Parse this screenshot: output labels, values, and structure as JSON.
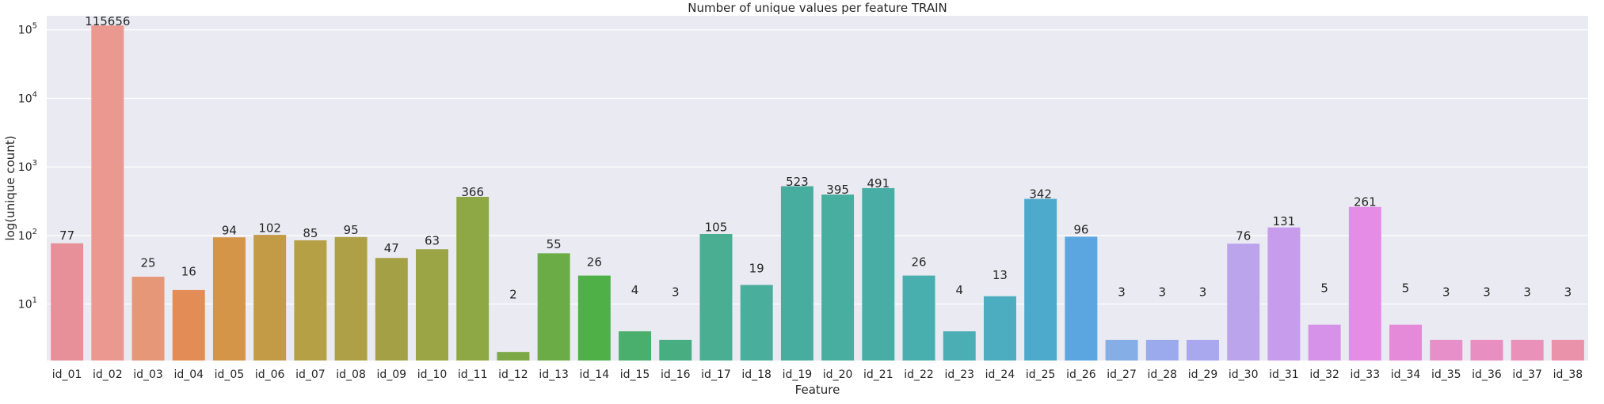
{
  "chart_data": {
    "type": "bar",
    "title": "Number of unique values per feature TRAIN",
    "xlabel": "Feature",
    "ylabel": "log(unique count)",
    "yscale": "log",
    "ylim": [
      1.5,
      160000
    ],
    "y_ticks": [
      {
        "base": "10",
        "exp": "1",
        "value": 10
      },
      {
        "base": "10",
        "exp": "2",
        "value": 100
      },
      {
        "base": "10",
        "exp": "3",
        "value": 1000
      },
      {
        "base": "10",
        "exp": "4",
        "value": 10000
      },
      {
        "base": "10",
        "exp": "5",
        "value": 100000
      }
    ],
    "grid": true,
    "background": "#eaeaf2",
    "categories": [
      "id_01",
      "id_02",
      "id_03",
      "id_04",
      "id_05",
      "id_06",
      "id_07",
      "id_08",
      "id_09",
      "id_10",
      "id_11",
      "id_12",
      "id_13",
      "id_14",
      "id_15",
      "id_16",
      "id_17",
      "id_18",
      "id_19",
      "id_20",
      "id_21",
      "id_22",
      "id_23",
      "id_24",
      "id_25",
      "id_26",
      "id_27",
      "id_28",
      "id_29",
      "id_30",
      "id_31",
      "id_32",
      "id_33",
      "id_34",
      "id_35",
      "id_36",
      "id_37",
      "id_38"
    ],
    "values": [
      77,
      115656,
      25,
      16,
      94,
      102,
      85,
      95,
      47,
      63,
      366,
      2,
      55,
      26,
      4,
      3,
      105,
      19,
      523,
      395,
      491,
      26,
      4,
      13,
      342,
      96,
      3,
      3,
      3,
      76,
      131,
      5,
      261,
      5,
      3,
      3,
      3,
      3
    ],
    "colors": [
      "#e8909a",
      "#eb9890",
      "#e59777",
      "#e38c55",
      "#d49548",
      "#c39b46",
      "#b5a046",
      "#aea046",
      "#a4a046",
      "#9ba546",
      "#8fa846",
      "#7ca946",
      "#6cac47",
      "#4fb047",
      "#4aae6c",
      "#49ad82",
      "#4aae93",
      "#4aae9d",
      "#47ad9e",
      "#48ae9f",
      "#48aea5",
      "#49aeae",
      "#4aaeb4",
      "#4cacc0",
      "#4eaacd",
      "#5ba6e0",
      "#86aee6",
      "#9aaaec",
      "#a9a8ee",
      "#bba4ec",
      "#c89cec",
      "#d692e8",
      "#e48ce6",
      "#e48ad8",
      "#e78fc8",
      "#e88ec0",
      "#e991b9",
      "#e992aa"
    ]
  }
}
